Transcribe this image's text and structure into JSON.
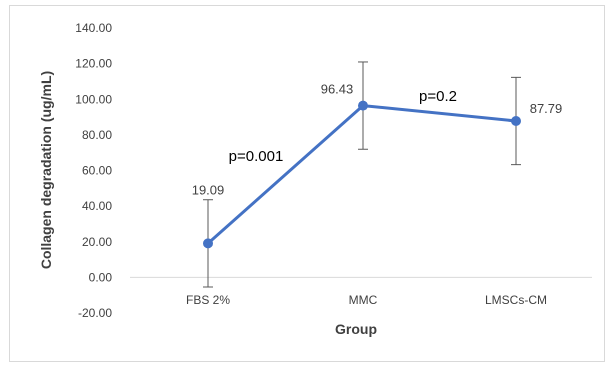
{
  "chart_data": {
    "type": "line",
    "title": "",
    "xlabel": "Group",
    "ylabel": "Collagen degradation (ug/mL)",
    "categories": [
      "FBS 2%",
      "MMC",
      "LMSCs-CM"
    ],
    "series": [
      {
        "values": [
          19.09,
          96.43,
          87.79
        ],
        "error": [
          24.5,
          24.5,
          24.5
        ],
        "data_labels": [
          "19.09",
          "96.43",
          "87.79"
        ],
        "color": "#4472c4"
      }
    ],
    "ylim": [
      -20,
      140
    ],
    "yticks": [
      -20,
      0,
      20,
      40,
      60,
      80,
      100,
      120,
      140
    ],
    "ytick_labels": [
      "-20.00",
      "0.00",
      "20.00",
      "40.00",
      "60.00",
      "80.00",
      "100.00",
      "120.00",
      "140.00"
    ],
    "annotations": [
      {
        "text": "p=0.001",
        "between": [
          0,
          1
        ]
      },
      {
        "text": "p=0.2",
        "between": [
          1,
          2
        ]
      }
    ],
    "grid": false,
    "legend": "none"
  }
}
